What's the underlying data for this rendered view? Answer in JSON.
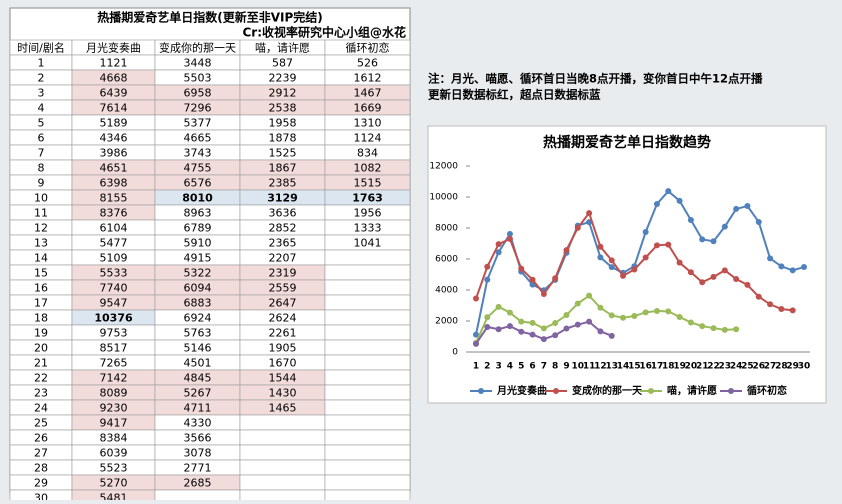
{
  "table": {
    "title": "热播期爱奇艺单日指数(更新至非VIP完结)",
    "subtitle": "Cr:收视率研究中心小组@水花",
    "first_header": "时间/剧名"
  },
  "note": [
    "注：月光、喵愿、循环首日当晚8点开播，变你首日中午12点开播",
    "更新日数据标红，超点日数据标蓝"
  ],
  "chart_data": {
    "type": "line",
    "title": "热播期爱奇艺单日指数趋势",
    "categories": [
      1,
      2,
      3,
      4,
      5,
      6,
      7,
      8,
      9,
      10,
      11,
      12,
      13,
      14,
      15,
      16,
      17,
      18,
      19,
      20,
      21,
      22,
      23,
      24,
      25,
      26,
      27,
      28,
      29,
      30
    ],
    "series": [
      {
        "name": "月光变奏曲",
        "color": "#4f81bd",
        "values": [
          1121,
          4668,
          6439,
          7614,
          5189,
          4346,
          3986,
          4651,
          6398,
          8155,
          8376,
          6104,
          5477,
          5109,
          5533,
          7740,
          9547,
          10376,
          9753,
          8517,
          7265,
          7142,
          8089,
          9230,
          9417,
          8384,
          6039,
          5523,
          5270,
          5481
        ]
      },
      {
        "name": "变成你的那一天",
        "color": "#c0504d",
        "values": [
          3448,
          5503,
          6958,
          7296,
          5377,
          4665,
          3743,
          4755,
          6576,
          8010,
          8963,
          6789,
          5910,
          4915,
          5322,
          6094,
          6883,
          6924,
          5763,
          5146,
          4501,
          4845,
          5267,
          4711,
          4330,
          3566,
          3078,
          2771,
          2685,
          null
        ]
      },
      {
        "name": "喵，请许愿",
        "color": "#9bbb59",
        "values": [
          587,
          2239,
          2912,
          2538,
          1958,
          1878,
          1525,
          1867,
          2385,
          3129,
          3636,
          2852,
          2365,
          2207,
          2319,
          2559,
          2647,
          2624,
          2261,
          1905,
          1670,
          1544,
          1430,
          1465,
          null,
          null,
          null,
          null,
          null,
          null
        ]
      },
      {
        "name": "循环初恋",
        "color": "#8064a2",
        "values": [
          526,
          1612,
          1467,
          1669,
          1310,
          1124,
          834,
          1082,
          1515,
          1763,
          1956,
          1333,
          1041,
          null,
          null,
          null,
          null,
          null,
          null,
          null,
          null,
          null,
          null,
          null,
          null,
          null,
          null,
          null,
          null,
          null
        ]
      }
    ],
    "ylim": [
      0,
      12000
    ],
    "yticks": [
      0,
      2000,
      4000,
      6000,
      8000,
      10000,
      12000
    ],
    "legend": "bottom"
  }
}
